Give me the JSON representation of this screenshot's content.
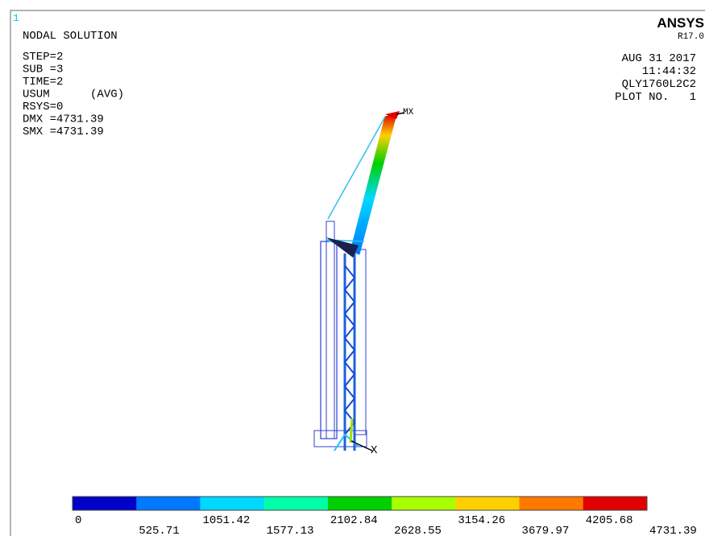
{
  "window": {
    "number": "1"
  },
  "header": {
    "title": "NODAL SOLUTION",
    "info": [
      "STEP=2",
      "SUB =3",
      "TIME=2",
      "USUM      (AVG)",
      "RSYS=0",
      "DMX =4731.39",
      "SMX =4731.39"
    ],
    "brand": "ANSYS",
    "version": "R17.0",
    "date": "AUG 31 2017",
    "time": "11:44:32",
    "model": "QLY1760L2C2",
    "plot": "PLOT NO.   1"
  },
  "annotations": {
    "max": "MX",
    "axis": "X"
  },
  "legend": {
    "colors": [
      "#0000c8",
      "#0078ff",
      "#00d8ff",
      "#00ffa8",
      "#00d000",
      "#a8ff00",
      "#ffd000",
      "#ff7800",
      "#e00000"
    ],
    "values": [
      0,
      525.71,
      1051.42,
      1577.13,
      2102.84,
      2628.55,
      3154.26,
      3679.97,
      4205.68,
      4731.39
    ]
  }
}
